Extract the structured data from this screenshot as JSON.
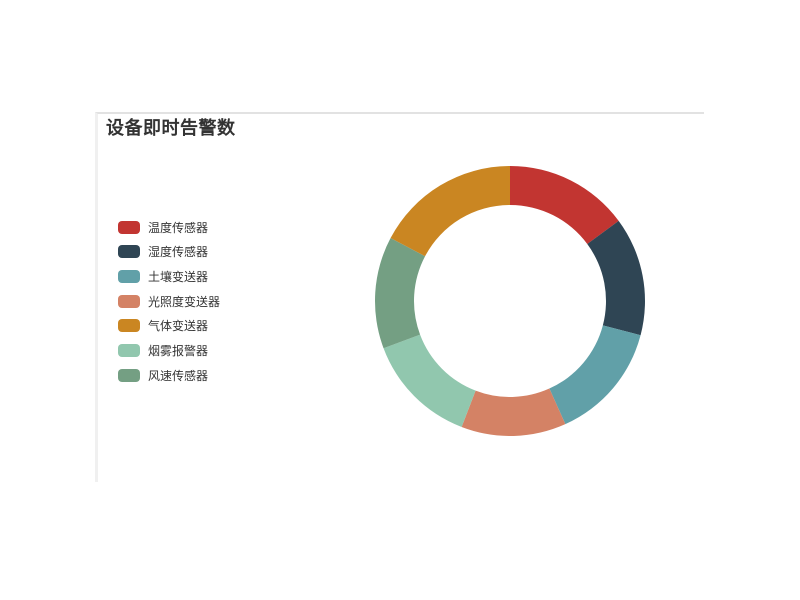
{
  "panel": {
    "title": "设备即时告警数"
  },
  "legend": {
    "items": [
      {
        "label": "温度传感器",
        "color": "#c23531"
      },
      {
        "label": "湿度传感器",
        "color": "#2f4554"
      },
      {
        "label": "土壤变送器",
        "color": "#61a0a8"
      },
      {
        "label": "光照度变送器",
        "color": "#d48265"
      },
      {
        "label": "气体变送器",
        "color": "#ca8622"
      },
      {
        "label": "烟雾报警器",
        "color": "#91c7ae"
      },
      {
        "label": "风速传感器",
        "color": "#749f83"
      }
    ]
  },
  "chart_data": {
    "type": "pie",
    "subtype": "donut",
    "title": "设备即时告警数",
    "start_angle": "top",
    "direction": "clockwise",
    "inner_radius_px": 96,
    "outer_radius_px": 135,
    "legend_position": "left",
    "labels_shown": false,
    "slices": [
      {
        "name": "温度传感器",
        "color": "#c23531",
        "angle_deg": 53.6,
        "percent": 14.9
      },
      {
        "name": "湿度传感器",
        "color": "#2f4554",
        "angle_deg": 51.1,
        "percent": 14.2
      },
      {
        "name": "土壤变送器",
        "color": "#61a0a8",
        "angle_deg": 51.1,
        "percent": 14.2
      },
      {
        "name": "光照度变送器",
        "color": "#d48265",
        "angle_deg": 45.2,
        "percent": 12.6
      },
      {
        "name": "烟雾报警器",
        "color": "#91c7ae",
        "angle_deg": 48.5,
        "percent": 13.5
      },
      {
        "name": "风速传感器",
        "color": "#749f83",
        "angle_deg": 48.3,
        "percent": 13.4
      },
      {
        "name": "气体变送器",
        "color": "#ca8622",
        "angle_deg": 62.2,
        "percent": 17.3
      }
    ]
  }
}
